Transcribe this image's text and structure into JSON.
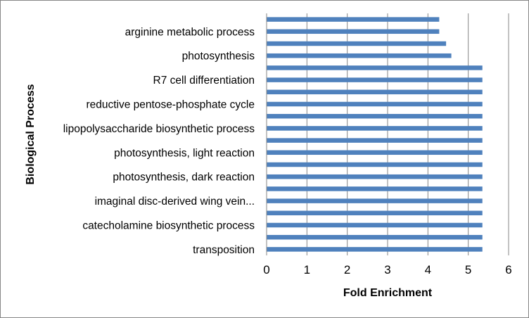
{
  "chart_data": {
    "type": "bar",
    "orientation": "horizontal",
    "title": "",
    "xlabel": "Fold Enrichment",
    "ylabel": "Biological Process",
    "xlim": [
      0,
      6
    ],
    "xticks": [
      0,
      1,
      2,
      3,
      4,
      5,
      6
    ],
    "grid": "vertical",
    "legend": "none",
    "bar_color": "#4f81bd",
    "categories": [
      "",
      "arginine metabolic process",
      "",
      "photosynthesis",
      "",
      "R7 cell differentiation",
      "",
      "reductive pentose-phosphate cycle",
      "",
      "lipopolysaccharide biosynthetic process",
      "",
      "photosynthesis, light reaction",
      "",
      "photosynthesis, dark reaction",
      "",
      "imaginal disc-derived wing vein...",
      "",
      "catecholamine biosynthetic process",
      "",
      "transposition"
    ],
    "values": [
      4.28,
      4.28,
      4.45,
      4.58,
      5.35,
      5.35,
      5.35,
      5.35,
      5.35,
      5.35,
      5.35,
      5.35,
      5.35,
      5.35,
      5.35,
      5.35,
      5.35,
      5.35,
      5.35,
      5.35
    ]
  }
}
